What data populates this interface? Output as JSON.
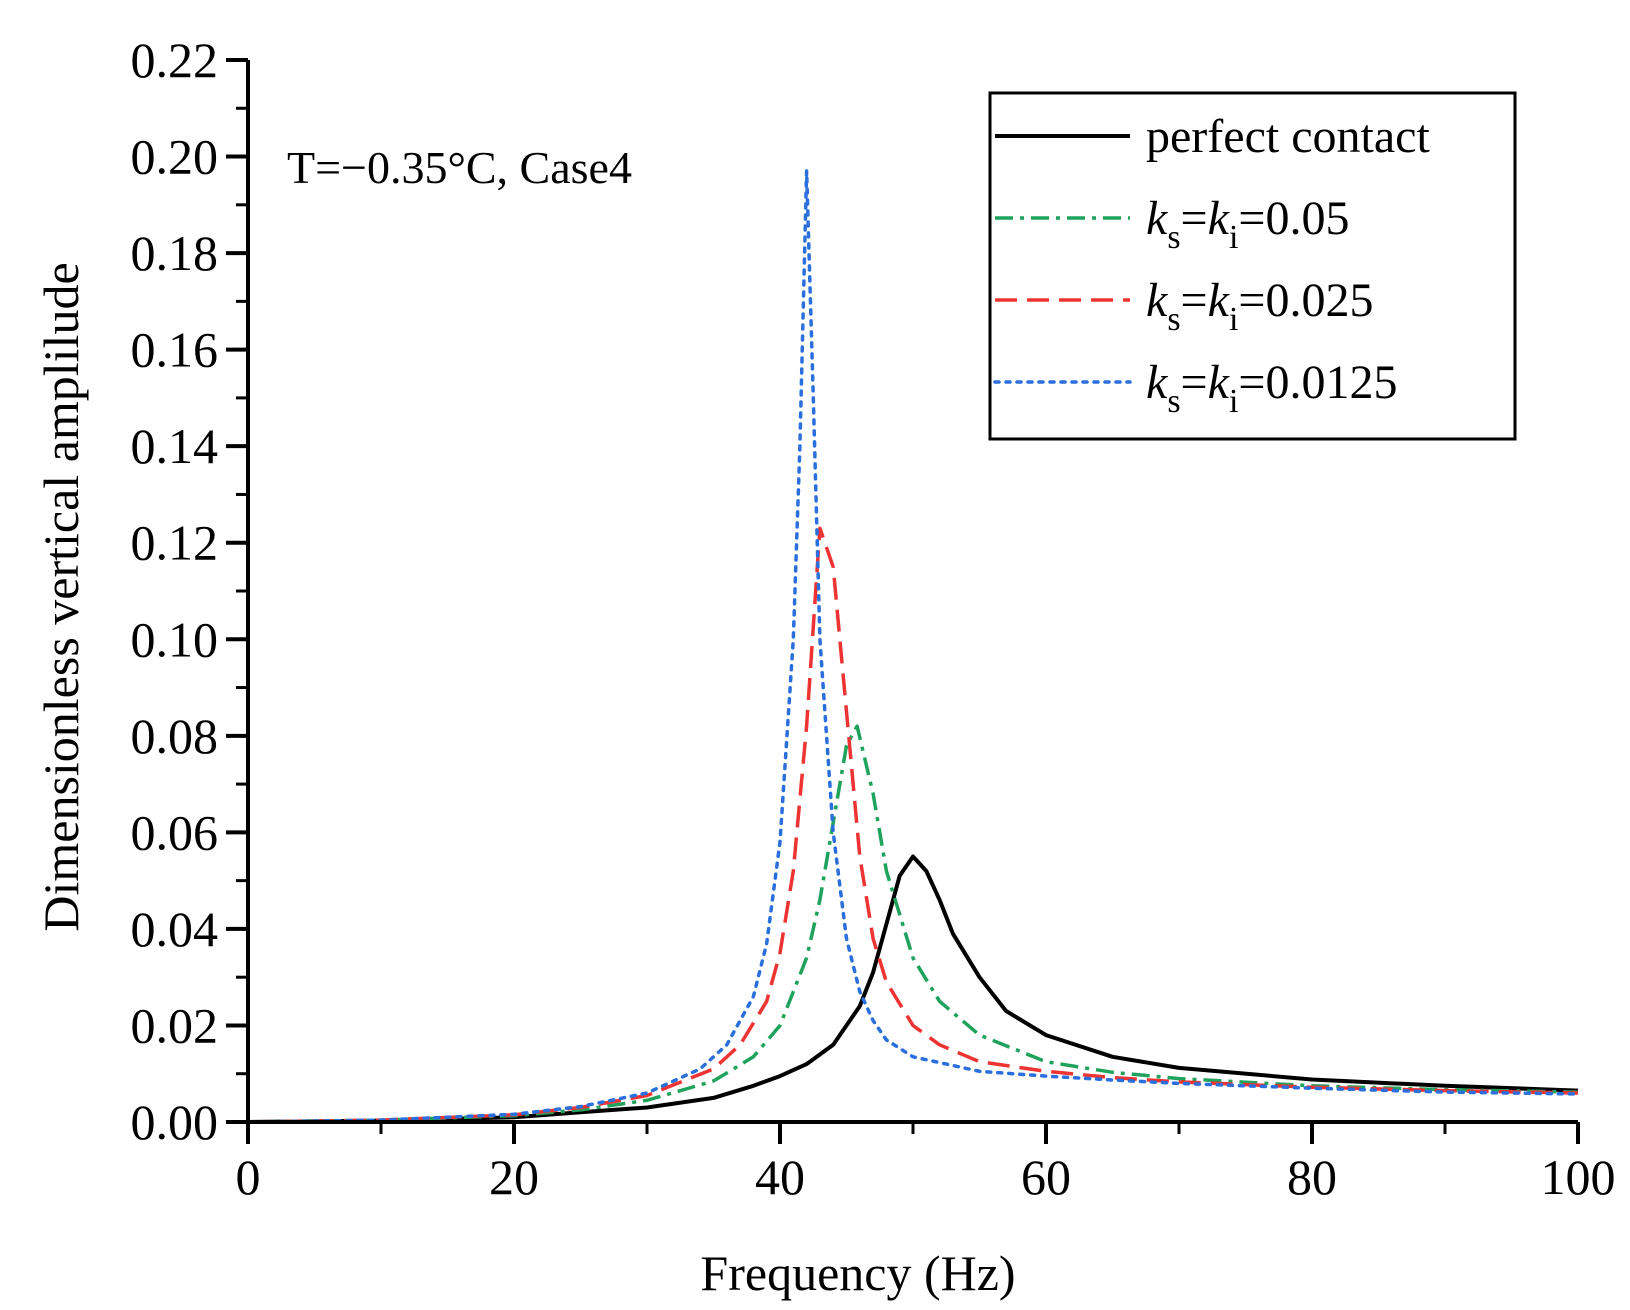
{
  "chart_data": {
    "type": "line",
    "title": "",
    "xlabel": "Frequency (Hz)",
    "ylabel": "Dimensionless vertical amplilude",
    "xlim": [
      0,
      100
    ],
    "ylim": [
      0,
      0.22
    ],
    "xticks": [
      0,
      20,
      40,
      60,
      80,
      100
    ],
    "xtick_labels": [
      "0",
      "20",
      "40",
      "60",
      "80",
      "100"
    ],
    "yticks": [
      0,
      0.02,
      0.04,
      0.06,
      0.08,
      0.1,
      0.12,
      0.14,
      0.16,
      0.18,
      0.2,
      0.22
    ],
    "ytick_labels": [
      "0.00",
      "0.02",
      "0.04",
      "0.06",
      "0.08",
      "0.10",
      "0.12",
      "0.14",
      "0.16",
      "0.18",
      "0.20",
      "0.22"
    ],
    "annotation": "T=−0.35°C, Case4",
    "legend_position": "top-right",
    "series": [
      {
        "name": "perfect contact",
        "legend": {
          "k1": "",
          "s1": "",
          "k2": "",
          "s2": "",
          "tail": "perfect contact"
        },
        "color": "#000000",
        "dash": "solid",
        "peak_x": 50.0,
        "peak_y": 0.055,
        "x": [
          0,
          10,
          20,
          25,
          30,
          35,
          38,
          40,
          42,
          44,
          46,
          47,
          48,
          49,
          50,
          51,
          52,
          53,
          55,
          57,
          60,
          65,
          70,
          80,
          90,
          100
        ],
        "y": [
          0.0,
          0.0003,
          0.001,
          0.002,
          0.003,
          0.005,
          0.0075,
          0.0095,
          0.012,
          0.016,
          0.024,
          0.031,
          0.041,
          0.051,
          0.055,
          0.052,
          0.046,
          0.039,
          0.03,
          0.023,
          0.018,
          0.0135,
          0.0112,
          0.0088,
          0.0075,
          0.0065
        ]
      },
      {
        "name": "ks=ki=0.05",
        "legend": {
          "k1": "k",
          "s1": "s",
          "k2": "k",
          "s2": "i",
          "tail": "=0.05"
        },
        "color": "#1fa35c",
        "dash": "dashdot",
        "peak_x": 45.8,
        "peak_y": 0.082,
        "x": [
          0,
          10,
          20,
          25,
          30,
          35,
          38,
          40,
          42,
          43,
          44,
          45,
          45.8,
          47,
          48,
          50,
          52,
          55,
          60,
          65,
          70,
          80,
          90,
          100
        ],
        "y": [
          0.0,
          0.0004,
          0.0013,
          0.0025,
          0.0045,
          0.0085,
          0.0135,
          0.02,
          0.034,
          0.046,
          0.062,
          0.078,
          0.082,
          0.068,
          0.052,
          0.034,
          0.025,
          0.018,
          0.0125,
          0.0103,
          0.009,
          0.0075,
          0.0067,
          0.0062
        ]
      },
      {
        "name": "ks=ki=0.025",
        "legend": {
          "k1": "k",
          "s1": "s",
          "k2": "k",
          "s2": "i",
          "tail": "=0.025"
        },
        "color": "#ee3333",
        "dash": "dashed",
        "peak_x": 43.0,
        "peak_y": 0.123,
        "x": [
          0,
          10,
          20,
          25,
          30,
          35,
          37,
          39,
          40,
          41,
          42,
          43,
          44,
          45,
          46,
          47,
          48,
          50,
          52,
          55,
          60,
          65,
          70,
          80,
          90,
          100
        ],
        "y": [
          0.0,
          0.0004,
          0.0015,
          0.003,
          0.0055,
          0.011,
          0.016,
          0.025,
          0.035,
          0.052,
          0.082,
          0.123,
          0.115,
          0.085,
          0.055,
          0.038,
          0.029,
          0.02,
          0.016,
          0.0125,
          0.0105,
          0.0092,
          0.0083,
          0.0072,
          0.0065,
          0.006
        ]
      },
      {
        "name": "ks=ki=0.0125",
        "legend": {
          "k1": "k",
          "s1": "s",
          "k2": "k",
          "s2": "i",
          "tail": "=0.0125"
        },
        "color": "#2a6fdb",
        "dash": "dotted",
        "peak_x": 42.0,
        "peak_y": 0.197,
        "x": [
          0,
          10,
          20,
          25,
          30,
          34,
          36,
          38,
          39,
          40,
          41,
          41.5,
          42,
          42.5,
          43,
          44,
          45,
          46,
          47,
          48,
          50,
          55,
          60,
          65,
          70,
          80,
          90,
          100
        ],
        "y": [
          0.0,
          0.0004,
          0.0016,
          0.0032,
          0.006,
          0.011,
          0.016,
          0.026,
          0.037,
          0.058,
          0.1,
          0.14,
          0.197,
          0.15,
          0.1,
          0.06,
          0.038,
          0.027,
          0.021,
          0.017,
          0.0135,
          0.0105,
          0.0095,
          0.0087,
          0.008,
          0.007,
          0.0062,
          0.0058
        ]
      }
    ]
  }
}
